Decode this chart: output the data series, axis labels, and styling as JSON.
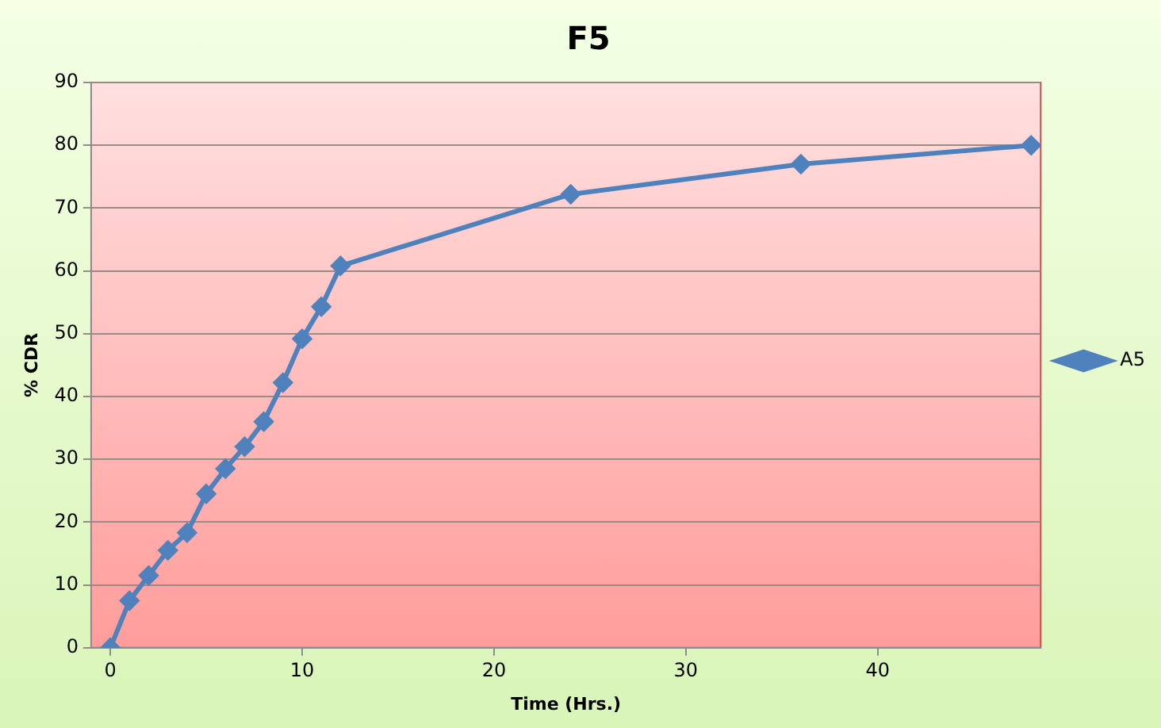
{
  "chart_data": {
    "type": "line",
    "title": "F5",
    "xlabel": "Time (Hrs.)",
    "ylabel": "% CDR",
    "x": [
      0,
      1,
      2,
      3,
      4,
      5,
      6,
      7,
      8,
      9,
      10,
      11,
      12,
      24,
      36,
      48
    ],
    "series": [
      {
        "name": "A5",
        "color": "#4f81bd",
        "values": [
          0,
          7.5,
          11.5,
          15.5,
          18.3,
          24.5,
          28.5,
          32,
          36,
          42.2,
          49.2,
          54.3,
          60.8,
          72.2,
          77,
          80
        ]
      }
    ],
    "xlim": [
      -1,
      48.5
    ],
    "xticks": [
      0,
      10,
      20,
      30,
      40
    ],
    "ylim": [
      0,
      90
    ],
    "yticks": [
      0,
      10,
      20,
      30,
      40,
      50,
      60,
      70,
      80,
      90
    ],
    "grid": "y",
    "legend": "right",
    "marker": "diamond",
    "line_style": "solid"
  }
}
